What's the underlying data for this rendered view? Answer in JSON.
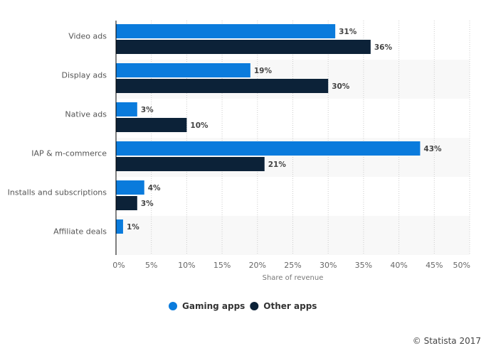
{
  "chart_data": {
    "type": "bar",
    "orientation": "horizontal",
    "categories": [
      "Video ads",
      "Display ads",
      "Native ads",
      "IAP & m-commerce",
      "Installs and subscriptions",
      "Affiliate deals"
    ],
    "series": [
      {
        "name": "Gaming apps",
        "color": "#0a7bdc",
        "values": [
          31,
          19,
          3,
          43,
          4,
          1
        ]
      },
      {
        "name": "Other apps",
        "color": "#0c2238",
        "values": [
          36,
          30,
          10,
          21,
          3,
          null
        ]
      }
    ],
    "xlabel": "Share of revenue",
    "xlim": [
      0,
      50
    ],
    "xticks": [
      "0%",
      "5%",
      "10%",
      "15%",
      "20%",
      "25%",
      "30%",
      "35%",
      "40%",
      "45%",
      "50%"
    ],
    "value_suffix": "%",
    "grid": true,
    "legend": "bottom"
  },
  "footer": {
    "copyright": "© Statista 2017"
  }
}
